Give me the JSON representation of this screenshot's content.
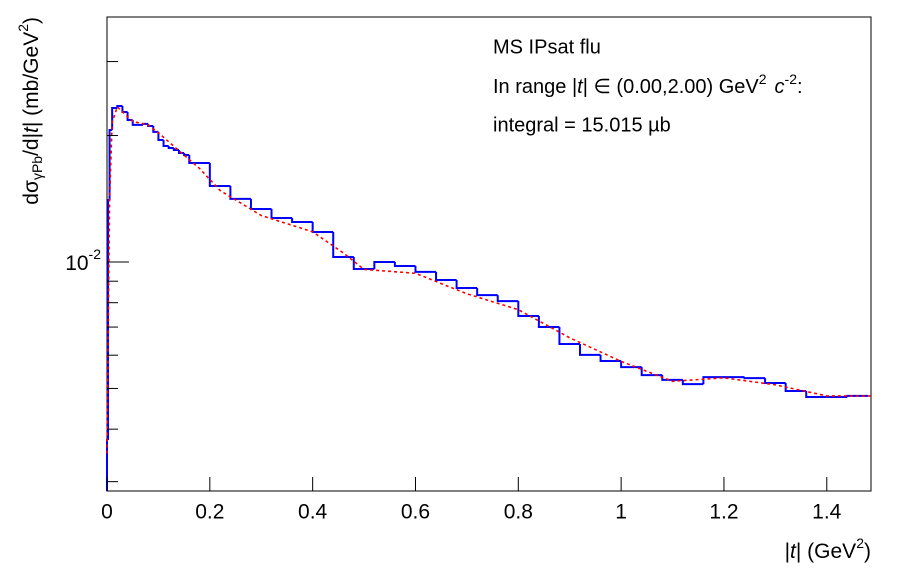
{
  "chart_data": {
    "type": "histogram",
    "title": "MS IPsat flu",
    "range_text": [
      "In range |",
      "t",
      "| ∈ (0.00,2.00) GeV",
      "2",
      "c",
      "-2",
      ":"
    ],
    "integral_text": "integral = 15.015 µb",
    "x_label": [
      "|",
      "t",
      "| (GeV",
      "2",
      ")"
    ],
    "y_label": [
      "dσ",
      "γPb",
      "/d|",
      "t",
      "| (mb/GeV",
      "2",
      ")"
    ],
    "bins": [
      0,
      0.002,
      0.005,
      0.01,
      0.02,
      0.03,
      0.04,
      0.05,
      0.06,
      0.07,
      0.08,
      0.09,
      0.1,
      0.11,
      0.12,
      0.13,
      0.14,
      0.15,
      0.16,
      0.2,
      0.24,
      0.28,
      0.32,
      0.36,
      0.4,
      0.44,
      0.48,
      0.52,
      0.56,
      0.6,
      0.64,
      0.68,
      0.72,
      0.76,
      0.8,
      0.84,
      0.88,
      0.92,
      0.96,
      1.0,
      1.04,
      1.08,
      1.12,
      1.16,
      1.2,
      1.24,
      1.28,
      1.32,
      1.36,
      1.4,
      1.44,
      1.48
    ],
    "values": [
      0.00377,
      0.01405,
      0.02062,
      0.02326,
      0.02352,
      0.02276,
      0.02178,
      0.0212,
      0.0212,
      0.02132,
      0.02108,
      0.0204,
      0.01952,
      0.01889,
      0.01868,
      0.01848,
      0.01818,
      0.01798,
      0.0172,
      0.01517,
      0.01413,
      0.01337,
      0.01273,
      0.01245,
      0.01179,
      0.01028,
      0.00962,
      0.01,
      0.00978,
      0.00947,
      0.00906,
      0.00867,
      0.00834,
      0.00807,
      0.00744,
      0.007,
      0.00638,
      0.00601,
      0.00581,
      0.00562,
      0.00538,
      0.00524,
      0.00512,
      0.00532,
      0.00532,
      0.00529,
      0.00515,
      0.00493,
      0.00477,
      0.00477,
      0.0048
    ],
    "color": "#0000ff",
    "curve": {
      "color": "#ff0000",
      "x": [
        0,
        0.005,
        0.01,
        0.02,
        0.05,
        0.08,
        0.1,
        0.14,
        0.18,
        0.22,
        0.3,
        0.4,
        0.46,
        0.5,
        0.6,
        0.7,
        0.8,
        0.9,
        1.0,
        1.1,
        1.2,
        1.3,
        1.4,
        1.486
      ],
      "values": [
        0.0035,
        0.014,
        0.0215,
        0.0234,
        0.0216,
        0.0212,
        0.0203,
        0.0184,
        0.0167,
        0.0148,
        0.0129,
        0.0118,
        0.0105,
        0.0096,
        0.0094,
        0.0084,
        0.0077,
        0.0066,
        0.0058,
        0.0052,
        0.0053,
        0.0051,
        0.0048,
        0.0048
      ]
    },
    "xlim": [
      0,
      1.486
    ],
    "xticks": [
      0,
      0.2,
      0.4,
      0.6,
      0.8,
      1,
      1.2,
      1.4
    ],
    "ylim": [
      0.00285,
      0.0383
    ],
    "log_y": true,
    "yticks": [
      {
        "value": 0.01,
        "label": "10^-2"
      }
    ],
    "yminor_ticks": [
      0.003,
      0.004,
      0.005,
      0.006,
      0.007,
      0.008,
      0.009,
      0.02,
      0.03
    ]
  }
}
